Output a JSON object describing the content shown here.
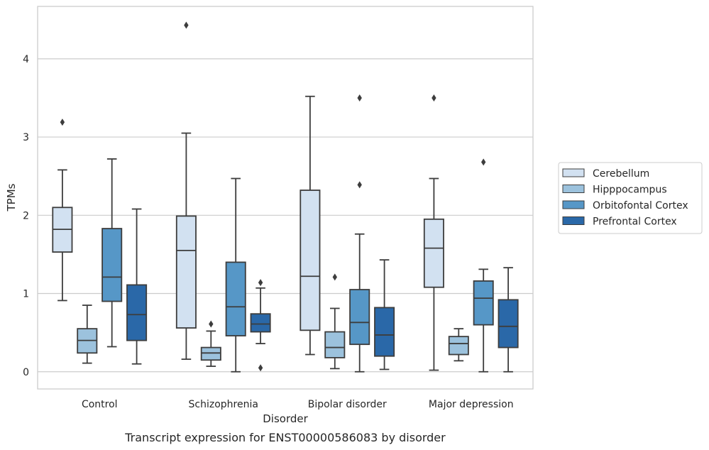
{
  "chart_data": {
    "type": "box",
    "caption": "Transcript expression for ENST00000586083 by disorder",
    "xlabel": "Disorder",
    "ylabel": "TPMs",
    "ylim": [
      -0.22,
      4.67
    ],
    "yticks": [
      "0",
      "1",
      "2",
      "3",
      "4"
    ],
    "grid": "horizontal",
    "legend_position": "right",
    "categories": [
      "Control",
      "Schizophrenia",
      "Bipolar disorder",
      "Major depression"
    ],
    "series": [
      {
        "name": "Cerebellum",
        "color": "#d2e1f1",
        "boxes": [
          {
            "whisker_low": 0.91,
            "q1": 1.53,
            "median": 1.82,
            "q3": 2.1,
            "whisker_high": 2.58,
            "outliers": [
              3.19
            ]
          },
          {
            "whisker_low": 0.16,
            "q1": 0.56,
            "median": 1.55,
            "q3": 1.99,
            "whisker_high": 3.05,
            "outliers": [
              4.43
            ]
          },
          {
            "whisker_low": 0.22,
            "q1": 0.53,
            "median": 1.22,
            "q3": 2.32,
            "whisker_high": 3.52,
            "outliers": []
          },
          {
            "whisker_low": 0.02,
            "q1": 1.08,
            "median": 1.58,
            "q3": 1.95,
            "whisker_high": 2.47,
            "outliers": [
              3.5
            ]
          }
        ]
      },
      {
        "name": "Hipppocampus",
        "color": "#9cc2dd",
        "boxes": [
          {
            "whisker_low": 0.11,
            "q1": 0.24,
            "median": 0.4,
            "q3": 0.55,
            "whisker_high": 0.85,
            "outliers": []
          },
          {
            "whisker_low": 0.07,
            "q1": 0.15,
            "median": 0.24,
            "q3": 0.31,
            "whisker_high": 0.52,
            "outliers": [
              0.61
            ]
          },
          {
            "whisker_low": 0.04,
            "q1": 0.18,
            "median": 0.31,
            "q3": 0.51,
            "whisker_high": 0.81,
            "outliers": [
              1.21
            ]
          },
          {
            "whisker_low": 0.14,
            "q1": 0.22,
            "median": 0.36,
            "q3": 0.45,
            "whisker_high": 0.55,
            "outliers": []
          }
        ]
      },
      {
        "name": "Orbitofontal Cortex",
        "color": "#5697c7",
        "boxes": [
          {
            "whisker_low": 0.32,
            "q1": 0.9,
            "median": 1.21,
            "q3": 1.83,
            "whisker_high": 2.72,
            "outliers": []
          },
          {
            "whisker_low": 0.0,
            "q1": 0.46,
            "median": 0.83,
            "q3": 1.4,
            "whisker_high": 2.47,
            "outliers": []
          },
          {
            "whisker_low": 0.0,
            "q1": 0.35,
            "median": 0.63,
            "q3": 1.05,
            "whisker_high": 1.76,
            "outliers": [
              2.39,
              3.5
            ]
          },
          {
            "whisker_low": 0.0,
            "q1": 0.6,
            "median": 0.94,
            "q3": 1.16,
            "whisker_high": 1.31,
            "outliers": [
              2.68
            ]
          }
        ]
      },
      {
        "name": "Prefrontal Cortex",
        "color": "#2a68a8",
        "boxes": [
          {
            "whisker_low": 0.1,
            "q1": 0.4,
            "median": 0.73,
            "q3": 1.11,
            "whisker_high": 2.08,
            "outliers": []
          },
          {
            "whisker_low": 0.36,
            "q1": 0.51,
            "median": 0.61,
            "q3": 0.74,
            "whisker_high": 1.07,
            "outliers": [
              0.05,
              1.14
            ]
          },
          {
            "whisker_low": 0.03,
            "q1": 0.2,
            "median": 0.47,
            "q3": 0.82,
            "whisker_high": 1.43,
            "outliers": []
          },
          {
            "whisker_low": 0.0,
            "q1": 0.31,
            "median": 0.58,
            "q3": 0.92,
            "whisker_high": 1.33,
            "outliers": []
          }
        ]
      }
    ]
  }
}
